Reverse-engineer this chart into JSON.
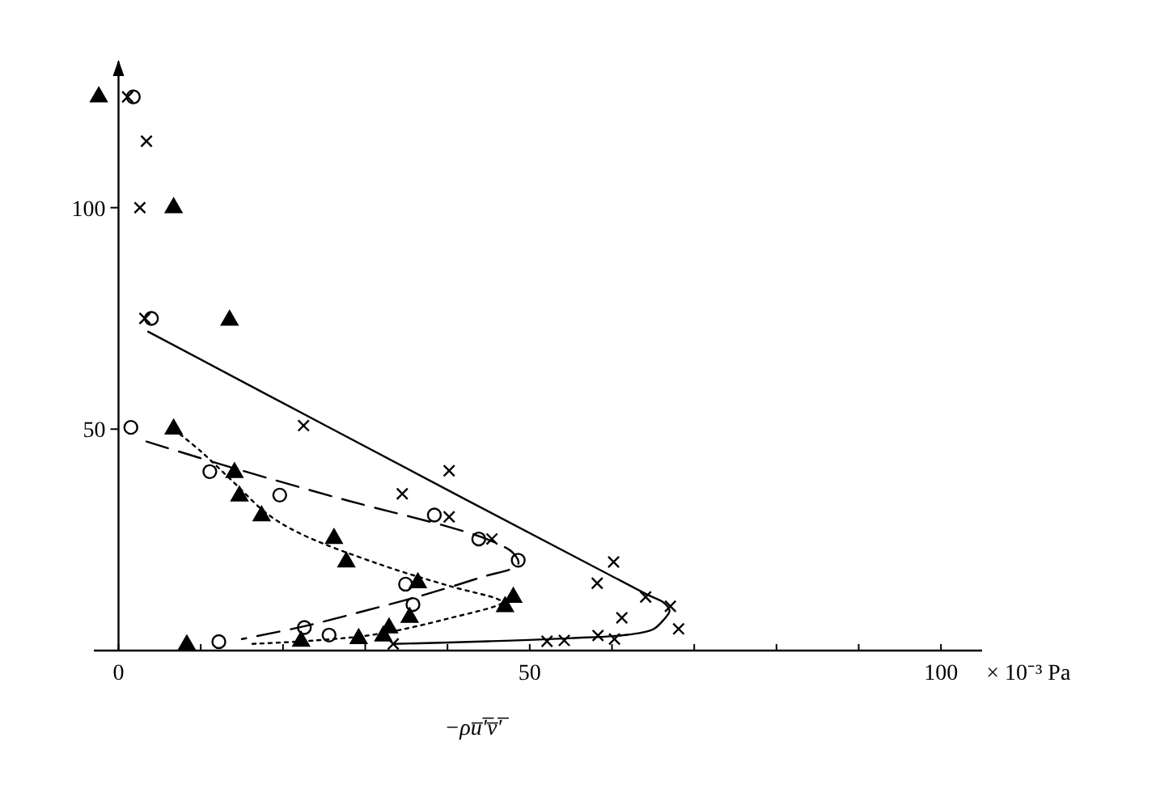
{
  "chart_data": {
    "type": "scatter",
    "xlabel": "−ρu̅′̅v̅′̅",
    "annotations": [
      "× 10⁻³ Pa"
    ],
    "xlim": [
      -3,
      105
    ],
    "ylim": [
      0,
      133
    ],
    "xticks": [
      0,
      {
        "value": 10,
        "label": null
      },
      {
        "value": 20,
        "label": null
      },
      {
        "value": 30,
        "label": null
      },
      {
        "value": 40,
        "label": null
      },
      50,
      {
        "value": 60,
        "label": null
      },
      {
        "value": 70,
        "label": null
      },
      {
        "value": 80,
        "label": null
      },
      {
        "value": 90,
        "label": null
      },
      100
    ],
    "yticks": [
      50,
      100
    ],
    "series": [
      {
        "marker": "triangle",
        "color": "#000000",
        "x": [
          -2.4,
          6.7,
          13.5,
          6.7,
          14.1,
          14.7,
          17.4,
          26.2,
          27.7,
          36.4,
          35.4,
          32.9,
          32.2,
          29.2,
          22.2,
          8.3,
          48.0,
          47.0
        ],
        "values": [
          125,
          100,
          74.6,
          50,
          40.2,
          34.9,
          30.4,
          25.3,
          20,
          15.3,
          7.5,
          5.1,
          3.3,
          2.7,
          2.1,
          1.3,
          12,
          9.9
        ]
      },
      {
        "marker": "circle",
        "color": "#000000",
        "x": [
          1.8,
          4.0,
          1.5,
          11.1,
          19.6,
          38.4,
          34.9,
          35.8,
          22.6,
          25.6,
          12.2,
          43.8,
          48.6
        ],
        "values": [
          125,
          75,
          50.4,
          40.4,
          35.1,
          30.6,
          15,
          10.4,
          5.2,
          3.5,
          2.0,
          25.2,
          20.4
        ]
      },
      {
        "marker": "cross",
        "color": "#000000",
        "x": [
          1.1,
          3.4,
          2.6,
          3.2,
          22.5,
          34.5,
          40.2,
          40.2,
          33.4,
          45.4,
          52.1,
          54.2,
          58.3,
          60.3,
          58.2,
          60.2,
          64.1,
          61.2,
          67.1,
          68.1
        ],
        "values": [
          125,
          115,
          100,
          75,
          50.8,
          35.4,
          40.6,
          30.2,
          1.5,
          25.2,
          2.1,
          2.3,
          3.4,
          2.6,
          15.2,
          20,
          12.1,
          7.4,
          10,
          4.9
        ]
      },
      {
        "type": "line",
        "line_style": "solid",
        "color": "#000000",
        "x": [
          3.6,
          25.8,
          64.1,
          66.3,
          67,
          66.3,
          65,
          62,
          55,
          45,
          33.4
        ],
        "values": [
          72,
          50.2,
          12.8,
          10.8,
          9,
          7,
          4.8,
          3.6,
          2.8,
          2.1,
          1.5
        ]
      },
      {
        "type": "line",
        "line_style": "dashed",
        "color": "#000000",
        "x": [
          3.4,
          14,
          28,
          39.8,
          45,
          48,
          48.6,
          44,
          37,
          30,
          22.6,
          15
        ],
        "values": [
          47.2,
          41.2,
          33.8,
          28.1,
          25,
          22,
          19.5,
          16.5,
          12.5,
          9,
          5.5,
          2.6
        ]
      },
      {
        "type": "line",
        "line_style": "dotted",
        "color": "#000000",
        "x": [
          6.7,
          10,
          14,
          18,
          22,
          31.4,
          40.4,
          46,
          46.7,
          39.8,
          31.4,
          24,
          16.2
        ],
        "values": [
          50,
          45,
          38,
          31,
          26.5,
          19.7,
          14.5,
          11.7,
          10.9,
          7.1,
          3.7,
          2.3,
          1.5
        ]
      }
    ]
  }
}
